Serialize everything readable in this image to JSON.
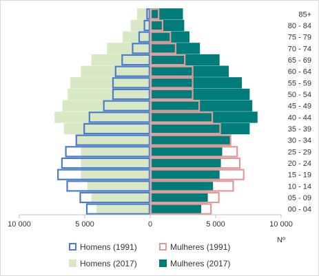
{
  "chart_data": {
    "type": "bar",
    "orientation": "horizontal",
    "subtype": "population-pyramid",
    "categories": [
      "00 - 04",
      "05 - 09",
      "10 - 14",
      "15 - 19",
      "20 - 24",
      "25 - 29",
      "30 - 34",
      "35 - 39",
      "40 - 44",
      "45 - 49",
      "50 - 54",
      "55 - 59",
      "60 - 64",
      "65 - 69",
      "70 - 74",
      "75 - 79",
      "80 - 84",
      "85+"
    ],
    "series": [
      {
        "name": "Homens (2017)",
        "side": "left",
        "style": "filled",
        "color": "#d9e8c4",
        "values": [
          4100,
          4500,
          4800,
          5300,
          5300,
          5300,
          5700,
          6600,
          7300,
          6700,
          6300,
          6100,
          5300,
          4500,
          3300,
          2100,
          1500,
          1000
        ]
      },
      {
        "name": "Mulheres (2017)",
        "side": "right",
        "style": "filled",
        "color": "#007c7a",
        "values": [
          3900,
          4400,
          4800,
          5300,
          5400,
          5500,
          6100,
          7600,
          8200,
          7800,
          7600,
          7000,
          6000,
          5300,
          3800,
          3000,
          2600,
          2500
        ]
      },
      {
        "name": "Homens (1991)",
        "side": "left",
        "style": "outline",
        "color": "#4a7cc9",
        "values": [
          4900,
          5400,
          6400,
          7100,
          6800,
          6500,
          5700,
          5100,
          4700,
          3600,
          2900,
          2900,
          2700,
          2200,
          1400,
          900,
          500,
          300
        ]
      },
      {
        "name": "Mulheres (1991)",
        "side": "right",
        "style": "outline",
        "color": "#e09a97",
        "values": [
          4700,
          5300,
          6400,
          7200,
          6900,
          6700,
          6200,
          5400,
          4800,
          3800,
          3300,
          3300,
          3300,
          2700,
          2000,
          1600,
          1000,
          700
        ]
      }
    ],
    "xlim": [
      -10000,
      10000
    ],
    "xticks": [
      -10000,
      -5000,
      0,
      5000,
      10000
    ],
    "xtick_labels": [
      "10 000",
      "5 000",
      "0",
      "5 000",
      "10 000"
    ],
    "xlabel": "Nº",
    "ylabel": "",
    "title": "",
    "grid": false,
    "legend_position": "bottom",
    "legend_order": [
      "Homens (1991)",
      "Mulheres (1991)",
      "Homens (2017)",
      "Mulheres (2017)"
    ]
  }
}
